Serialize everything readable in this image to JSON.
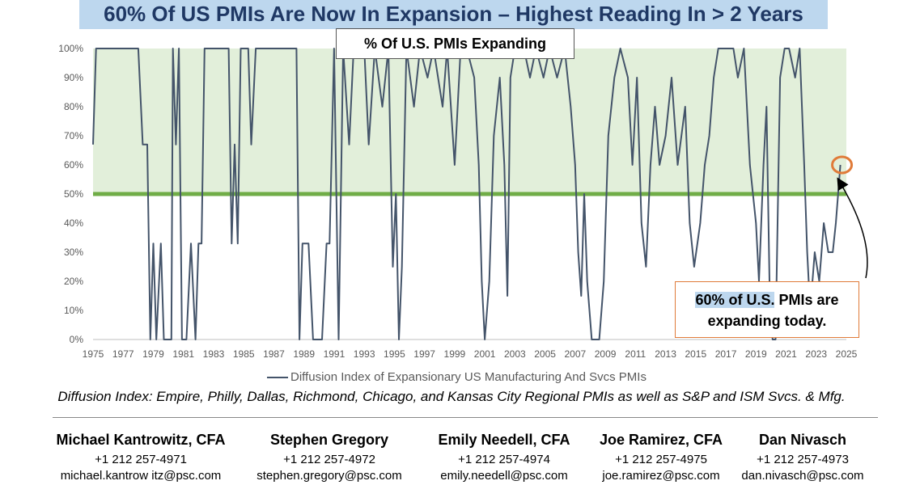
{
  "title": "60% Of US PMIs Are Now In Expansion – Highest Reading In > 2 Years",
  "chart_data": {
    "type": "line",
    "title": "% Of U.S. PMIs Expanding",
    "xlabel": "",
    "ylabel": "",
    "ylim": [
      0,
      100
    ],
    "xlim": [
      1975,
      2025
    ],
    "y_ticks": [
      "0%",
      "10%",
      "20%",
      "30%",
      "40%",
      "50%",
      "60%",
      "70%",
      "80%",
      "90%",
      "100%"
    ],
    "x_ticks": [
      "1975",
      "1977",
      "1979",
      "1981",
      "1983",
      "1985",
      "1987",
      "1989",
      "1991",
      "1993",
      "1995",
      "1997",
      "1999",
      "2001",
      "2003",
      "2005",
      "2007",
      "2009",
      "2011",
      "2013",
      "2015",
      "2017",
      "2019",
      "2021",
      "2023",
      "2025"
    ],
    "threshold": 50,
    "shaded_region": [
      50,
      100
    ],
    "grid": false,
    "legend_position": "bottom",
    "series": [
      {
        "name": "Diffusion Index of Expansionary US Manufacturing And Svcs PMIs",
        "color": "#44546a",
        "points": [
          [
            1975.0,
            67
          ],
          [
            1975.2,
            100
          ],
          [
            1976.5,
            100
          ],
          [
            1978.0,
            100
          ],
          [
            1978.3,
            67
          ],
          [
            1978.6,
            67
          ],
          [
            1978.8,
            0
          ],
          [
            1979.0,
            33
          ],
          [
            1979.2,
            0
          ],
          [
            1979.5,
            33
          ],
          [
            1979.7,
            0
          ],
          [
            1980.2,
            0
          ],
          [
            1980.3,
            100
          ],
          [
            1980.5,
            67
          ],
          [
            1980.7,
            100
          ],
          [
            1980.9,
            0
          ],
          [
            1981.2,
            0
          ],
          [
            1981.5,
            33
          ],
          [
            1981.8,
            0
          ],
          [
            1982.0,
            33
          ],
          [
            1982.2,
            33
          ],
          [
            1982.4,
            100
          ],
          [
            1983.5,
            100
          ],
          [
            1984.0,
            100
          ],
          [
            1984.2,
            33
          ],
          [
            1984.4,
            67
          ],
          [
            1984.6,
            33
          ],
          [
            1984.8,
            100
          ],
          [
            1985.3,
            100
          ],
          [
            1985.5,
            67
          ],
          [
            1985.8,
            100
          ],
          [
            1988.5,
            100
          ],
          [
            1988.7,
            0
          ],
          [
            1988.9,
            33
          ],
          [
            1989.3,
            33
          ],
          [
            1989.6,
            0
          ],
          [
            1990.2,
            0
          ],
          [
            1990.5,
            33
          ],
          [
            1990.7,
            33
          ],
          [
            1991.0,
            100
          ],
          [
            1991.3,
            0
          ],
          [
            1991.6,
            100
          ],
          [
            1992.0,
            67
          ],
          [
            1992.3,
            100
          ],
          [
            1993.0,
            100
          ],
          [
            1993.3,
            67
          ],
          [
            1993.7,
            100
          ],
          [
            1994.2,
            80
          ],
          [
            1994.6,
            100
          ],
          [
            1994.9,
            25
          ],
          [
            1995.1,
            50
          ],
          [
            1995.3,
            0
          ],
          [
            1995.5,
            25
          ],
          [
            1995.8,
            100
          ],
          [
            1996.3,
            80
          ],
          [
            1996.7,
            100
          ],
          [
            1997.2,
            90
          ],
          [
            1997.6,
            100
          ],
          [
            1998.2,
            80
          ],
          [
            1998.5,
            100
          ],
          [
            1999.0,
            60
          ],
          [
            1999.4,
            100
          ],
          [
            1999.8,
            100
          ],
          [
            2000.3,
            90
          ],
          [
            2000.6,
            60
          ],
          [
            2000.8,
            20
          ],
          [
            2001.0,
            0
          ],
          [
            2001.3,
            20
          ],
          [
            2001.6,
            70
          ],
          [
            2002.0,
            90
          ],
          [
            2002.3,
            60
          ],
          [
            2002.5,
            15
          ],
          [
            2002.7,
            90
          ],
          [
            2003.0,
            100
          ],
          [
            2003.6,
            100
          ],
          [
            2004.0,
            90
          ],
          [
            2004.4,
            100
          ],
          [
            2004.9,
            90
          ],
          [
            2005.3,
            100
          ],
          [
            2005.8,
            90
          ],
          [
            2006.3,
            100
          ],
          [
            2006.7,
            80
          ],
          [
            2007.0,
            60
          ],
          [
            2007.2,
            30
          ],
          [
            2007.4,
            15
          ],
          [
            2007.6,
            50
          ],
          [
            2007.8,
            20
          ],
          [
            2008.1,
            0
          ],
          [
            2008.6,
            0
          ],
          [
            2008.9,
            20
          ],
          [
            2009.2,
            70
          ],
          [
            2009.6,
            90
          ],
          [
            2010.0,
            100
          ],
          [
            2010.5,
            90
          ],
          [
            2010.8,
            60
          ],
          [
            2011.1,
            90
          ],
          [
            2011.4,
            40
          ],
          [
            2011.7,
            25
          ],
          [
            2012.0,
            60
          ],
          [
            2012.3,
            80
          ],
          [
            2012.6,
            60
          ],
          [
            2013.0,
            70
          ],
          [
            2013.4,
            90
          ],
          [
            2013.8,
            60
          ],
          [
            2014.3,
            80
          ],
          [
            2014.6,
            40
          ],
          [
            2014.9,
            25
          ],
          [
            2015.3,
            40
          ],
          [
            2015.6,
            60
          ],
          [
            2015.9,
            70
          ],
          [
            2016.2,
            90
          ],
          [
            2016.5,
            100
          ],
          [
            2017.5,
            100
          ],
          [
            2017.8,
            90
          ],
          [
            2018.2,
            100
          ],
          [
            2018.6,
            60
          ],
          [
            2019.0,
            40
          ],
          [
            2019.2,
            20
          ],
          [
            2019.5,
            60
          ],
          [
            2019.7,
            80
          ],
          [
            2019.9,
            20
          ],
          [
            2020.1,
            0
          ],
          [
            2020.3,
            0
          ],
          [
            2020.6,
            90
          ],
          [
            2020.9,
            100
          ],
          [
            2021.2,
            100
          ],
          [
            2021.6,
            90
          ],
          [
            2021.9,
            100
          ],
          [
            2022.2,
            60
          ],
          [
            2022.4,
            30
          ],
          [
            2022.6,
            10
          ],
          [
            2022.9,
            30
          ],
          [
            2023.2,
            20
          ],
          [
            2023.5,
            40
          ],
          [
            2023.8,
            30
          ],
          [
            2024.1,
            30
          ],
          [
            2024.3,
            40
          ],
          [
            2024.6,
            60
          ]
        ]
      }
    ],
    "annotations": [
      {
        "text": "60% of U.S. PMIs are expanding today.",
        "points_to": [
          2024.6,
          60
        ]
      }
    ]
  },
  "callout": {
    "highlighted": "60% of U.S.",
    "rest_line1": " PMIs are",
    "line2": "expanding today."
  },
  "footnote": "Diffusion Index: Empire, Philly, Dallas, Richmond, Chicago, and Kansas City Regional PMIs as well as S&P and ISM Svcs. & Mfg.",
  "contacts": [
    {
      "name": "Michael Kantrowitz, CFA",
      "phone": "+1 212 257-4971",
      "email": "michael.kantrow itz@psc.com"
    },
    {
      "name": "Stephen Gregory",
      "phone": "+1 212 257-4972",
      "email": "stephen.gregory@psc.com"
    },
    {
      "name": "Emily Needell, CFA",
      "phone": "+1 212 257-4974",
      "email": "emily.needell@psc.com"
    },
    {
      "name": "Joe Ramirez, CFA",
      "phone": "+1 212 257-4975",
      "email": "joe.ramirez@psc.com"
    },
    {
      "name": "Dan Nivasch",
      "phone": "+1 212 257-4973",
      "email": "dan.nivasch@psc.com"
    }
  ],
  "colors": {
    "title_banner": "#bdd7ee",
    "title_text": "#1f3864",
    "shade": "#e2efda",
    "threshold": "#70ad47",
    "series": "#44546a",
    "circle": "#e07b39",
    "callout_border": "#e07b39"
  }
}
